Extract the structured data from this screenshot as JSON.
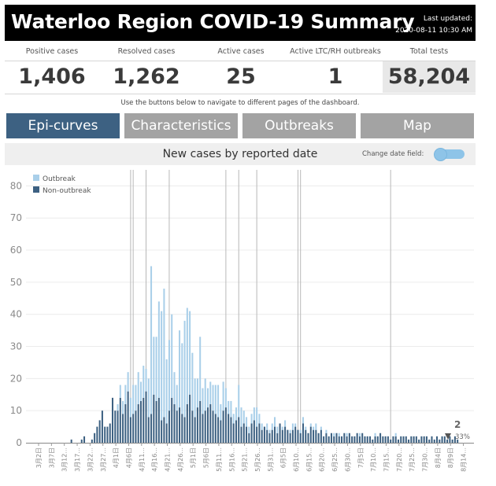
{
  "header": {
    "title": "Waterloo Region COVID-19 Summary",
    "last_updated_label": "Last updated:",
    "last_updated_value": "2020-08-11 10:30 AM"
  },
  "kpis": [
    {
      "label": "Positive cases",
      "value": "1,406"
    },
    {
      "label": "Resolved cases",
      "value": "1,262"
    },
    {
      "label": "Active cases",
      "value": "25"
    },
    {
      "label": "Active LTC/RH outbreaks",
      "value": "1"
    },
    {
      "label": "Total tests",
      "value": "58,204"
    }
  ],
  "nav_note": "Use the buttons below to navigate to different pages of the dashboard.",
  "nav": {
    "epi": "Epi-curves",
    "characteristics": "Characteristics",
    "outbreaks": "Outbreaks",
    "map": "Map"
  },
  "chart_header": {
    "title": "New cases by reported date",
    "toggle_label": "Change date field:"
  },
  "colors": {
    "outbreak": "#a9cfe9",
    "non_outbreak": "#3d6182",
    "active_nav": "#3d6182",
    "inactive_nav": "#a3a3a3"
  },
  "chart_data": {
    "type": "bar",
    "stacked": true,
    "title": "New cases by reported date",
    "legend": [
      "Outbreak",
      "Non-outbreak"
    ],
    "legend_position": "top-left",
    "ylim": [
      0,
      85
    ],
    "yticks": [
      0,
      10,
      20,
      30,
      40,
      50,
      60,
      70,
      80
    ],
    "grid": true,
    "x_tick_labels": [
      "3月2日",
      "3月7日",
      "3月12...",
      "3月17...",
      "3月22...",
      "3月27...",
      "4月1日",
      "4月6日",
      "4月11...",
      "4月16...",
      "4月21...",
      "4月26...",
      "5月1日",
      "5月6日",
      "5月11...",
      "5月16...",
      "5月21...",
      "5月26...",
      "5月31...",
      "6月5日",
      "6月10...",
      "6月15...",
      "6月20...",
      "6月25...",
      "6月30...",
      "7月5日",
      "7月10...",
      "7月15...",
      "7月20...",
      "7月25...",
      "7月30...",
      "8月4日",
      "8月9日",
      "8月14..."
    ],
    "start_date": "2020-03-02",
    "outbreak_dates": [
      "2020-04-09",
      "2020-04-10",
      "2020-04-15",
      "2020-04-24",
      "2020-05-16",
      "2020-05-21",
      "2020-05-28",
      "2020-06-13",
      "2020-06-14",
      "2020-07-19"
    ],
    "series": [
      {
        "name": "Non-outbreak",
        "values": [
          0,
          0,
          0,
          0,
          0,
          0,
          0,
          0,
          0,
          0,
          0,
          0,
          0,
          0,
          0,
          1,
          0,
          0,
          0,
          1,
          2,
          0,
          0,
          1,
          3,
          5,
          7,
          10,
          5,
          5,
          6,
          14,
          10,
          10,
          14,
          9,
          12,
          16,
          8,
          9,
          10,
          12,
          13,
          14,
          16,
          8,
          9,
          15,
          13,
          14,
          7,
          8,
          6,
          10,
          14,
          12,
          10,
          11,
          9,
          8,
          12,
          15,
          10,
          8,
          11,
          13,
          9,
          10,
          11,
          12,
          10,
          9,
          8,
          7,
          10,
          11,
          9,
          8,
          6,
          7,
          8,
          5,
          6,
          5,
          3,
          6,
          7,
          5,
          6,
          4,
          5,
          4,
          3,
          4,
          5,
          3,
          6,
          4,
          5,
          4,
          3,
          4,
          5,
          4,
          3,
          6,
          4,
          3,
          5,
          4,
          4,
          3,
          4,
          2,
          3,
          2,
          3,
          2,
          3,
          2,
          2,
          3,
          2,
          3,
          2,
          2,
          3,
          2,
          3,
          2,
          2,
          2,
          1,
          2,
          2,
          3,
          2,
          2,
          2,
          1,
          2,
          2,
          1,
          2,
          2,
          2,
          1,
          2,
          2,
          2,
          1,
          2,
          2,
          2,
          1,
          2,
          1,
          2,
          1,
          2,
          2,
          1,
          2,
          1,
          2,
          1
        ]
      },
      {
        "name": "Outbreak",
        "values": [
          0,
          0,
          0,
          0,
          0,
          0,
          0,
          0,
          0,
          0,
          0,
          0,
          0,
          0,
          0,
          0,
          0,
          0,
          0,
          0,
          0,
          0,
          0,
          0,
          0,
          0,
          0,
          0,
          0,
          0,
          0,
          0,
          0,
          2,
          4,
          4,
          6,
          6,
          6,
          9,
          8,
          10,
          6,
          10,
          7,
          12,
          46,
          18,
          20,
          30,
          34,
          40,
          20,
          22,
          26,
          10,
          8,
          24,
          22,
          30,
          30,
          26,
          18,
          12,
          9,
          20,
          8,
          10,
          6,
          7,
          8,
          9,
          10,
          5,
          9,
          6,
          4,
          5,
          3,
          4,
          10,
          6,
          4,
          3,
          2,
          3,
          4,
          6,
          3,
          2,
          0,
          2,
          1,
          2,
          3,
          2,
          0,
          1,
          2,
          0,
          1,
          2,
          1,
          0,
          1,
          2,
          1,
          0,
          1,
          1,
          2,
          0,
          1,
          0,
          1,
          0,
          0,
          1,
          0,
          1,
          0,
          0,
          1,
          0,
          0,
          0,
          0,
          1,
          0,
          0,
          0,
          0,
          0,
          1,
          0,
          0,
          0,
          0,
          0,
          0,
          0,
          1,
          0,
          0,
          0,
          0,
          0,
          0,
          0,
          0,
          0,
          0,
          0,
          0,
          0,
          0,
          0,
          0,
          0,
          0,
          0,
          0,
          0,
          0,
          0
        ]
      }
    ],
    "annotation": {
      "value": "2",
      "percent": "33%"
    }
  }
}
